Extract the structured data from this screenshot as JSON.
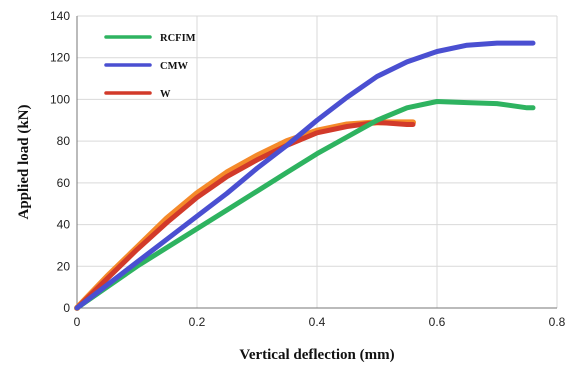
{
  "chart_data": {
    "type": "line",
    "title": "",
    "xlabel": "Vertical deflection (mm)",
    "ylabel": "Applied load (kN)",
    "xlim": [
      0,
      0.8
    ],
    "ylim": [
      0,
      140
    ],
    "xticks": [
      0,
      0.2,
      0.4,
      0.6,
      0.8
    ],
    "xtick_labels": [
      "0",
      "0.2",
      "0.4",
      "0.6",
      "0.8"
    ],
    "yticks": [
      0,
      20,
      40,
      60,
      80,
      100,
      120,
      140
    ],
    "ytick_labels": [
      "0",
      "20",
      "40",
      "60",
      "80",
      "100",
      "120",
      "140"
    ],
    "grid": true,
    "legend_position": "top-left",
    "series": [
      {
        "name": "RCFIM",
        "color": "#2eb360",
        "x": [
          0,
          0.05,
          0.1,
          0.15,
          0.2,
          0.25,
          0.3,
          0.35,
          0.4,
          0.45,
          0.5,
          0.55,
          0.6,
          0.65,
          0.7,
          0.75,
          0.76
        ],
        "y": [
          0,
          10,
          20,
          29,
          38,
          47,
          56,
          65,
          74,
          82,
          90,
          96,
          99,
          98.5,
          98,
          96,
          96
        ]
      },
      {
        "name": "CMW",
        "color": "#4a4fd1",
        "x": [
          0,
          0.05,
          0.1,
          0.15,
          0.2,
          0.25,
          0.3,
          0.35,
          0.4,
          0.45,
          0.5,
          0.55,
          0.6,
          0.65,
          0.7,
          0.75,
          0.76
        ],
        "y": [
          0,
          11,
          22,
          33,
          44,
          55,
          67,
          78,
          90,
          101,
          111,
          118,
          123,
          126,
          127,
          127,
          127
        ]
      },
      {
        "name": "W",
        "color": "#d23a2a",
        "x": [
          0,
          0.05,
          0.1,
          0.15,
          0.2,
          0.25,
          0.3,
          0.35,
          0.4,
          0.45,
          0.5,
          0.55,
          0.56
        ],
        "y": [
          0,
          14,
          28,
          41,
          53,
          63,
          71,
          78,
          84,
          87,
          89,
          88,
          88
        ]
      },
      {
        "name": "",
        "color": "#f58a2a",
        "x": [
          0,
          0.05,
          0.1,
          0.15,
          0.2,
          0.25,
          0.3,
          0.35,
          0.4,
          0.45,
          0.5,
          0.55,
          0.56
        ],
        "y": [
          0,
          15,
          29,
          43,
          55,
          65,
          73,
          80,
          85,
          88,
          89,
          89,
          89
        ]
      }
    ]
  }
}
